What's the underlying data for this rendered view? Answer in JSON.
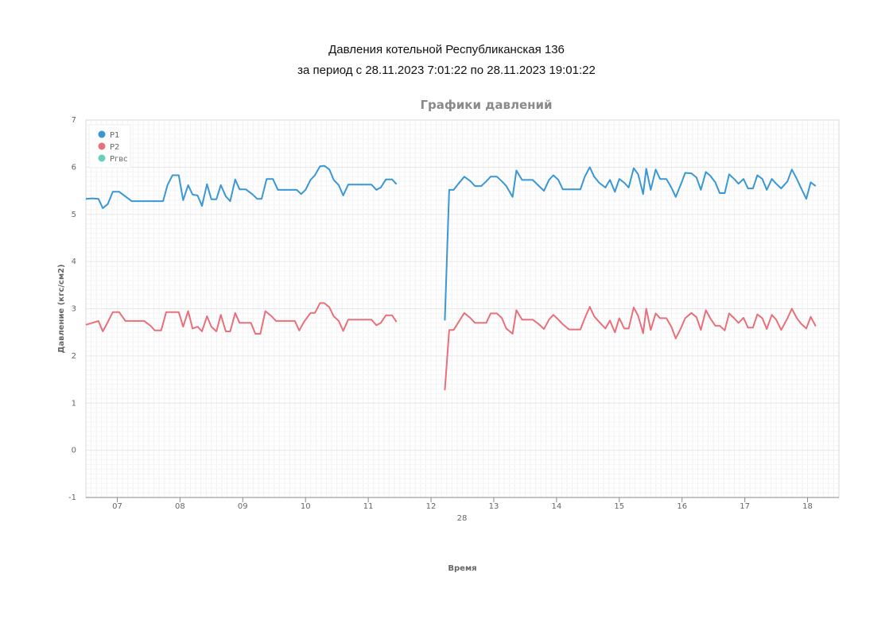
{
  "report": {
    "title": "Давления котельной Республиканская 136",
    "period": "за период с 28.11.2023 7:01:22 по 28.11.2023 19:01:22"
  },
  "chart_data": {
    "type": "line",
    "title": "Графики давлений",
    "xlabel": "Время",
    "ylabel": "Давление (кгс/см2)",
    "ylim": [
      -1,
      7
    ],
    "yticks": [
      -1,
      0,
      1,
      2,
      3,
      4,
      5,
      6,
      7
    ],
    "x_range_hours": [
      6.5,
      18.5
    ],
    "x_ticks": [
      "07",
      "08",
      "09",
      "10",
      "11",
      "12",
      "13",
      "14",
      "15",
      "16",
      "17",
      "18"
    ],
    "x_tick_hours": [
      7,
      8,
      9,
      10,
      11,
      12,
      13,
      14,
      15,
      16,
      17,
      18
    ],
    "date_label": "28",
    "grid": true,
    "legend": "top-left",
    "series": [
      {
        "name": "P1",
        "color": "#3a97d6",
        "segments": [
          [
            [
              6.5,
              5.33
            ],
            [
              6.6,
              5.34
            ],
            [
              6.7,
              5.33
            ],
            [
              6.77,
              5.13
            ],
            [
              6.85,
              5.22
            ],
            [
              6.93,
              5.48
            ],
            [
              7.03,
              5.48
            ],
            [
              7.13,
              5.38
            ],
            [
              7.23,
              5.28
            ],
            [
              7.33,
              5.28
            ],
            [
              7.43,
              5.28
            ],
            [
              7.53,
              5.28
            ],
            [
              7.63,
              5.28
            ],
            [
              7.73,
              5.28
            ],
            [
              7.8,
              5.62
            ],
            [
              7.88,
              5.83
            ],
            [
              7.98,
              5.83
            ],
            [
              8.05,
              5.3
            ],
            [
              8.13,
              5.62
            ],
            [
              8.2,
              5.42
            ],
            [
              8.28,
              5.4
            ],
            [
              8.35,
              5.18
            ],
            [
              8.43,
              5.64
            ],
            [
              8.5,
              5.32
            ],
            [
              8.58,
              5.32
            ],
            [
              8.65,
              5.62
            ],
            [
              8.73,
              5.38
            ],
            [
              8.8,
              5.28
            ],
            [
              8.88,
              5.74
            ],
            [
              8.95,
              5.53
            ],
            [
              9.05,
              5.53
            ],
            [
              9.15,
              5.43
            ],
            [
              9.23,
              5.33
            ],
            [
              9.3,
              5.33
            ],
            [
              9.38,
              5.75
            ],
            [
              9.48,
              5.75
            ],
            [
              9.56,
              5.52
            ],
            [
              9.66,
              5.52
            ],
            [
              9.76,
              5.52
            ],
            [
              9.86,
              5.52
            ],
            [
              9.93,
              5.43
            ],
            [
              10.0,
              5.52
            ],
            [
              10.08,
              5.73
            ],
            [
              10.15,
              5.83
            ],
            [
              10.23,
              6.02
            ],
            [
              10.3,
              6.03
            ],
            [
              10.38,
              5.95
            ],
            [
              10.45,
              5.73
            ],
            [
              10.53,
              5.62
            ],
            [
              10.6,
              5.4
            ],
            [
              10.68,
              5.63
            ],
            [
              10.78,
              5.63
            ],
            [
              10.88,
              5.63
            ],
            [
              10.98,
              5.63
            ],
            [
              11.05,
              5.63
            ],
            [
              11.13,
              5.52
            ],
            [
              11.2,
              5.57
            ],
            [
              11.28,
              5.74
            ],
            [
              11.38,
              5.74
            ],
            [
              11.45,
              5.64
            ]
          ],
          [
            [
              12.22,
              2.75
            ],
            [
              12.29,
              5.52
            ],
            [
              12.36,
              5.52
            ],
            [
              12.43,
              5.64
            ],
            [
              12.53,
              5.8
            ],
            [
              12.63,
              5.7
            ],
            [
              12.7,
              5.6
            ],
            [
              12.8,
              5.6
            ],
            [
              12.88,
              5.7
            ],
            [
              12.95,
              5.8
            ],
            [
              13.05,
              5.8
            ],
            [
              13.13,
              5.7
            ],
            [
              13.2,
              5.6
            ],
            [
              13.3,
              5.37
            ],
            [
              13.36,
              5.93
            ],
            [
              13.45,
              5.73
            ],
            [
              13.55,
              5.73
            ],
            [
              13.62,
              5.73
            ],
            [
              13.72,
              5.6
            ],
            [
              13.8,
              5.5
            ],
            [
              13.88,
              5.73
            ],
            [
              13.95,
              5.83
            ],
            [
              14.03,
              5.73
            ],
            [
              14.1,
              5.53
            ],
            [
              14.2,
              5.53
            ],
            [
              14.3,
              5.53
            ],
            [
              14.38,
              5.53
            ],
            [
              14.45,
              5.8
            ],
            [
              14.53,
              6.0
            ],
            [
              14.6,
              5.8
            ],
            [
              14.68,
              5.67
            ],
            [
              14.78,
              5.57
            ],
            [
              14.85,
              5.73
            ],
            [
              14.93,
              5.48
            ],
            [
              15.0,
              5.75
            ],
            [
              15.08,
              5.67
            ],
            [
              15.15,
              5.57
            ],
            [
              15.23,
              5.98
            ],
            [
              15.3,
              5.85
            ],
            [
              15.38,
              5.43
            ],
            [
              15.43,
              5.97
            ],
            [
              15.5,
              5.52
            ],
            [
              15.58,
              5.95
            ],
            [
              15.65,
              5.75
            ],
            [
              15.75,
              5.75
            ],
            [
              15.83,
              5.57
            ],
            [
              15.9,
              5.37
            ],
            [
              15.98,
              5.63
            ],
            [
              16.05,
              5.88
            ],
            [
              16.15,
              5.87
            ],
            [
              16.23,
              5.78
            ],
            [
              16.3,
              5.52
            ],
            [
              16.38,
              5.9
            ],
            [
              16.45,
              5.82
            ],
            [
              16.53,
              5.68
            ],
            [
              16.6,
              5.45
            ],
            [
              16.68,
              5.45
            ],
            [
              16.75,
              5.85
            ],
            [
              16.83,
              5.75
            ],
            [
              16.9,
              5.65
            ],
            [
              16.98,
              5.75
            ],
            [
              17.05,
              5.55
            ],
            [
              17.13,
              5.55
            ],
            [
              17.2,
              5.83
            ],
            [
              17.28,
              5.75
            ],
            [
              17.35,
              5.52
            ],
            [
              17.43,
              5.75
            ],
            [
              17.5,
              5.65
            ],
            [
              17.58,
              5.55
            ],
            [
              17.68,
              5.7
            ],
            [
              17.75,
              5.95
            ],
            [
              17.83,
              5.75
            ],
            [
              17.9,
              5.55
            ],
            [
              17.98,
              5.33
            ],
            [
              18.05,
              5.68
            ],
            [
              18.13,
              5.6
            ]
          ]
        ]
      },
      {
        "name": "P2",
        "color": "#e9707a",
        "segments": [
          [
            [
              6.5,
              2.66
            ],
            [
              6.6,
              2.7
            ],
            [
              6.7,
              2.74
            ],
            [
              6.77,
              2.52
            ],
            [
              6.85,
              2.72
            ],
            [
              6.93,
              2.93
            ],
            [
              7.03,
              2.93
            ],
            [
              7.13,
              2.74
            ],
            [
              7.23,
              2.74
            ],
            [
              7.33,
              2.74
            ],
            [
              7.43,
              2.74
            ],
            [
              7.53,
              2.64
            ],
            [
              7.6,
              2.54
            ],
            [
              7.7,
              2.54
            ],
            [
              7.78,
              2.93
            ],
            [
              7.88,
              2.93
            ],
            [
              7.98,
              2.93
            ],
            [
              8.05,
              2.62
            ],
            [
              8.13,
              2.95
            ],
            [
              8.2,
              2.58
            ],
            [
              8.28,
              2.62
            ],
            [
              8.35,
              2.52
            ],
            [
              8.43,
              2.84
            ],
            [
              8.5,
              2.62
            ],
            [
              8.58,
              2.52
            ],
            [
              8.65,
              2.87
            ],
            [
              8.73,
              2.52
            ],
            [
              8.8,
              2.52
            ],
            [
              8.88,
              2.91
            ],
            [
              8.95,
              2.7
            ],
            [
              9.05,
              2.7
            ],
            [
              9.13,
              2.7
            ],
            [
              9.2,
              2.47
            ],
            [
              9.28,
              2.47
            ],
            [
              9.36,
              2.95
            ],
            [
              9.46,
              2.84
            ],
            [
              9.53,
              2.74
            ],
            [
              9.63,
              2.74
            ],
            [
              9.73,
              2.74
            ],
            [
              9.83,
              2.74
            ],
            [
              9.9,
              2.54
            ],
            [
              9.98,
              2.73
            ],
            [
              10.08,
              2.91
            ],
            [
              10.15,
              2.91
            ],
            [
              10.23,
              3.12
            ],
            [
              10.3,
              3.12
            ],
            [
              10.38,
              3.03
            ],
            [
              10.45,
              2.84
            ],
            [
              10.53,
              2.74
            ],
            [
              10.6,
              2.53
            ],
            [
              10.68,
              2.77
            ],
            [
              10.78,
              2.77
            ],
            [
              10.88,
              2.77
            ],
            [
              10.98,
              2.77
            ],
            [
              11.05,
              2.77
            ],
            [
              11.13,
              2.65
            ],
            [
              11.2,
              2.7
            ],
            [
              11.28,
              2.86
            ],
            [
              11.38,
              2.86
            ],
            [
              11.45,
              2.72
            ]
          ],
          [
            [
              12.22,
              1.27
            ],
            [
              12.29,
              2.55
            ],
            [
              12.36,
              2.55
            ],
            [
              12.43,
              2.7
            ],
            [
              12.53,
              2.91
            ],
            [
              12.63,
              2.8
            ],
            [
              12.7,
              2.7
            ],
            [
              12.8,
              2.7
            ],
            [
              12.88,
              2.7
            ],
            [
              12.95,
              2.9
            ],
            [
              13.05,
              2.9
            ],
            [
              13.13,
              2.8
            ],
            [
              13.2,
              2.58
            ],
            [
              13.3,
              2.47
            ],
            [
              13.36,
              2.97
            ],
            [
              13.45,
              2.77
            ],
            [
              13.55,
              2.77
            ],
            [
              13.62,
              2.77
            ],
            [
              13.72,
              2.67
            ],
            [
              13.8,
              2.57
            ],
            [
              13.88,
              2.77
            ],
            [
              13.95,
              2.87
            ],
            [
              14.03,
              2.77
            ],
            [
              14.1,
              2.67
            ],
            [
              14.2,
              2.56
            ],
            [
              14.3,
              2.56
            ],
            [
              14.38,
              2.56
            ],
            [
              14.45,
              2.8
            ],
            [
              14.53,
              3.04
            ],
            [
              14.6,
              2.84
            ],
            [
              14.68,
              2.72
            ],
            [
              14.78,
              2.58
            ],
            [
              14.85,
              2.75
            ],
            [
              14.93,
              2.5
            ],
            [
              15.0,
              2.8
            ],
            [
              15.08,
              2.58
            ],
            [
              15.15,
              2.58
            ],
            [
              15.23,
              3.03
            ],
            [
              15.3,
              2.85
            ],
            [
              15.38,
              2.48
            ],
            [
              15.43,
              3.0
            ],
            [
              15.5,
              2.55
            ],
            [
              15.58,
              2.9
            ],
            [
              15.65,
              2.8
            ],
            [
              15.75,
              2.8
            ],
            [
              15.83,
              2.62
            ],
            [
              15.9,
              2.37
            ],
            [
              15.98,
              2.58
            ],
            [
              16.05,
              2.8
            ],
            [
              16.15,
              2.91
            ],
            [
              16.23,
              2.82
            ],
            [
              16.3,
              2.55
            ],
            [
              16.38,
              2.97
            ],
            [
              16.45,
              2.8
            ],
            [
              16.53,
              2.64
            ],
            [
              16.6,
              2.64
            ],
            [
              16.68,
              2.54
            ],
            [
              16.75,
              2.9
            ],
            [
              16.83,
              2.8
            ],
            [
              16.9,
              2.7
            ],
            [
              16.98,
              2.81
            ],
            [
              17.05,
              2.6
            ],
            [
              17.13,
              2.6
            ],
            [
              17.2,
              2.88
            ],
            [
              17.28,
              2.8
            ],
            [
              17.35,
              2.57
            ],
            [
              17.43,
              2.87
            ],
            [
              17.5,
              2.77
            ],
            [
              17.58,
              2.55
            ],
            [
              17.68,
              2.8
            ],
            [
              17.75,
              3.0
            ],
            [
              17.83,
              2.8
            ],
            [
              17.9,
              2.68
            ],
            [
              17.98,
              2.58
            ],
            [
              18.05,
              2.83
            ],
            [
              18.13,
              2.63
            ]
          ]
        ]
      },
      {
        "name": "Ргвс",
        "color": "#6ccfbb",
        "segments": []
      }
    ]
  }
}
